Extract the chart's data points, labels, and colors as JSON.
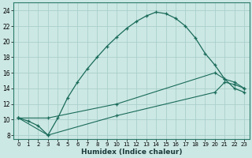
{
  "xlabel": "Humidex (Indice chaleur)",
  "background_color": "#cce8e4",
  "grid_color": "#aacfcc",
  "line_color": "#1a6b5a",
  "xlim": [
    -0.5,
    23.5
  ],
  "ylim": [
    7.5,
    25
  ],
  "xticks": [
    0,
    1,
    2,
    3,
    4,
    5,
    6,
    7,
    8,
    9,
    10,
    11,
    12,
    13,
    14,
    15,
    16,
    17,
    18,
    19,
    20,
    21,
    22,
    23
  ],
  "yticks": [
    8,
    10,
    12,
    14,
    16,
    18,
    20,
    22,
    24
  ],
  "curve1_x": [
    0,
    1,
    2,
    3,
    4,
    5,
    6,
    7,
    8,
    9,
    10,
    11,
    12,
    13,
    14,
    15,
    16,
    17,
    18,
    19,
    20,
    21,
    22,
    23
  ],
  "curve1_y": [
    10.2,
    9.8,
    9.2,
    8.0,
    10.2,
    12.8,
    14.8,
    16.5,
    18.0,
    19.4,
    20.6,
    21.7,
    22.6,
    23.3,
    23.8,
    23.6,
    23.0,
    22.0,
    20.5,
    18.5,
    17.0,
    15.2,
    14.0,
    13.5
  ],
  "curve2_x": [
    0,
    3,
    10,
    20,
    21,
    22,
    23
  ],
  "curve2_y": [
    10.2,
    10.2,
    12.0,
    16.0,
    15.2,
    14.8,
    14.0
  ],
  "curve3_x": [
    0,
    3,
    10,
    20,
    21,
    22,
    23
  ],
  "curve3_y": [
    10.2,
    8.0,
    10.5,
    13.5,
    14.8,
    14.5,
    14.0
  ]
}
